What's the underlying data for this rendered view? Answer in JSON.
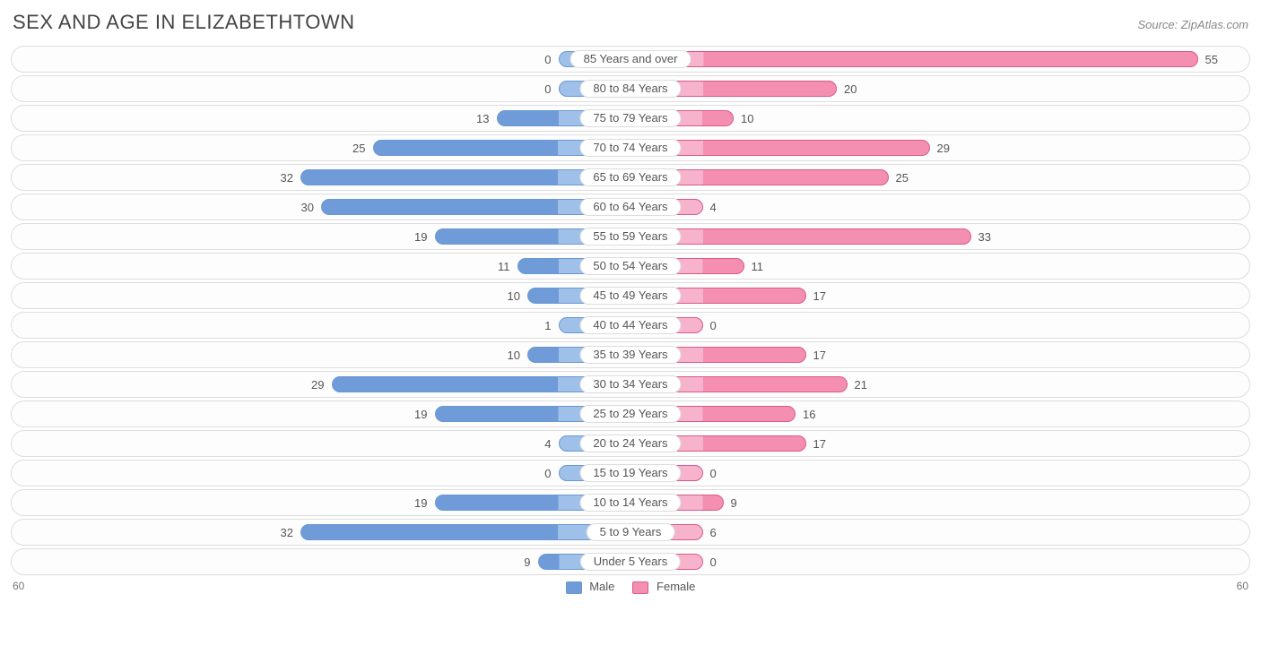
{
  "header": {
    "title": "SEX AND AGE IN ELIZABETHTOWN",
    "source": "Source: ZipAtlas.com"
  },
  "chart": {
    "type": "diverging-bar",
    "axis_max": 60,
    "axis_left_label": "60",
    "axis_right_label": "60",
    "label_min_width_units": 7,
    "colors": {
      "male_fill": "#6f9bd8",
      "male_fill_light": "#9fc0e8",
      "male_border": "#6a98d0",
      "female_fill": "#f48fb1",
      "female_fill_light": "#f7b3cb",
      "female_border": "#d95a8a",
      "row_border": "#dddddd",
      "text": "#555555",
      "background": "#ffffff"
    },
    "legend": {
      "male": "Male",
      "female": "Female"
    },
    "rows": [
      {
        "label": "85 Years and over",
        "male": 0,
        "female": 55
      },
      {
        "label": "80 to 84 Years",
        "male": 0,
        "female": 20
      },
      {
        "label": "75 to 79 Years",
        "male": 13,
        "female": 10
      },
      {
        "label": "70 to 74 Years",
        "male": 25,
        "female": 29
      },
      {
        "label": "65 to 69 Years",
        "male": 32,
        "female": 25
      },
      {
        "label": "60 to 64 Years",
        "male": 30,
        "female": 4
      },
      {
        "label": "55 to 59 Years",
        "male": 19,
        "female": 33
      },
      {
        "label": "50 to 54 Years",
        "male": 11,
        "female": 11
      },
      {
        "label": "45 to 49 Years",
        "male": 10,
        "female": 17
      },
      {
        "label": "40 to 44 Years",
        "male": 1,
        "female": 0
      },
      {
        "label": "35 to 39 Years",
        "male": 10,
        "female": 17
      },
      {
        "label": "30 to 34 Years",
        "male": 29,
        "female": 21
      },
      {
        "label": "25 to 29 Years",
        "male": 19,
        "female": 16
      },
      {
        "label": "20 to 24 Years",
        "male": 4,
        "female": 17
      },
      {
        "label": "15 to 19 Years",
        "male": 0,
        "female": 0
      },
      {
        "label": "10 to 14 Years",
        "male": 19,
        "female": 9
      },
      {
        "label": "5 to 9 Years",
        "male": 32,
        "female": 6
      },
      {
        "label": "Under 5 Years",
        "male": 9,
        "female": 0
      }
    ]
  }
}
